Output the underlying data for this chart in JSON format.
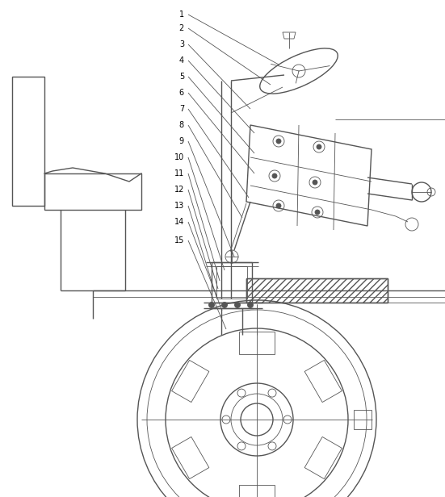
{
  "bg_color": "#ffffff",
  "line_color": "#555555",
  "fig_width": 5.51,
  "fig_height": 6.16,
  "dpi": 100
}
